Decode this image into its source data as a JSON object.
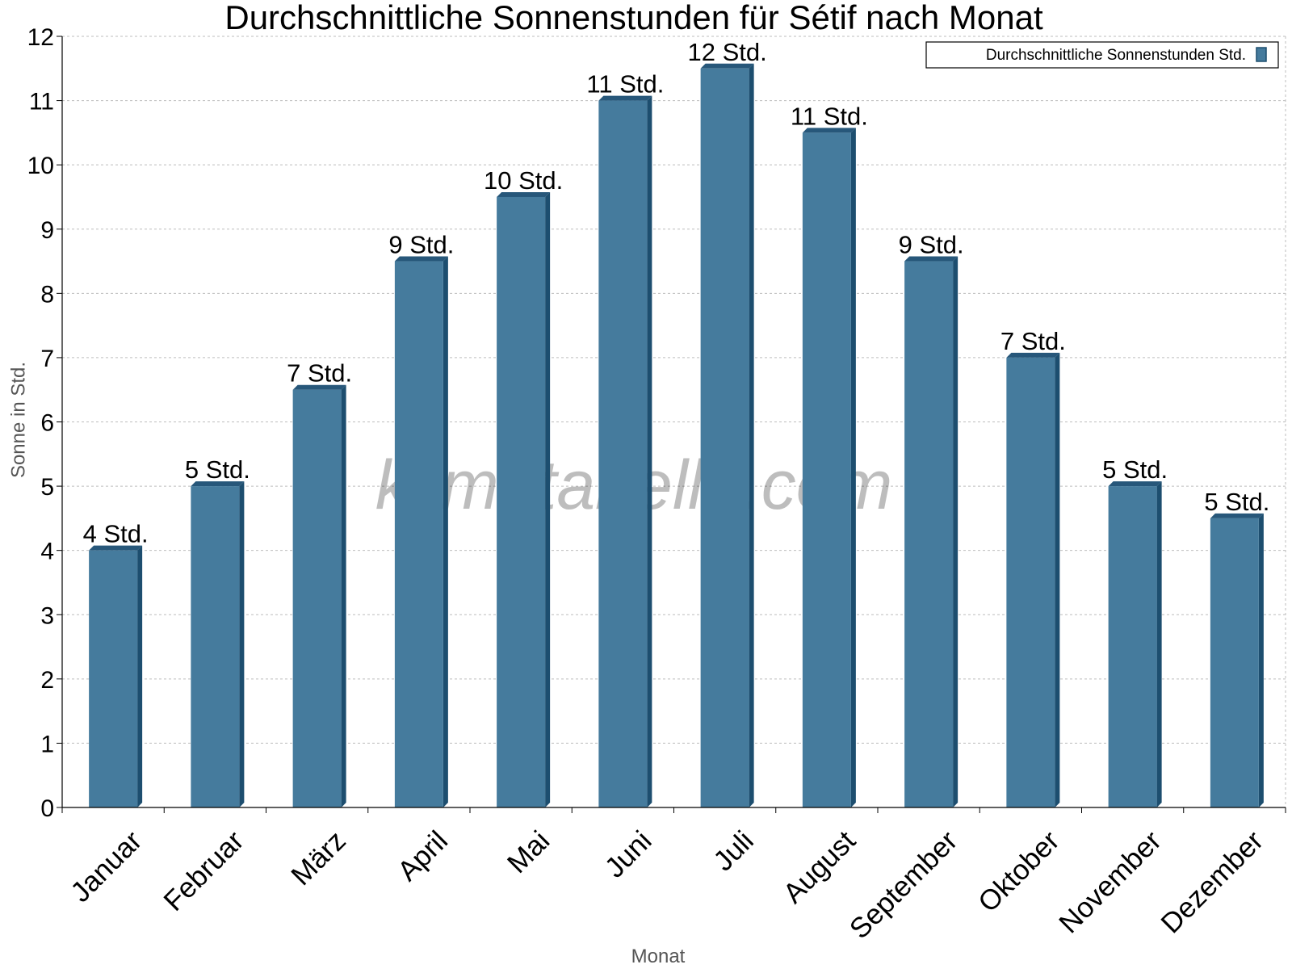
{
  "chart_data": {
    "type": "bar",
    "title": "Durchschnittliche Sonnenstunden für Sétif nach Monat",
    "xlabel": "Monat",
    "ylabel": "Sonne in Std.",
    "ylim": [
      0,
      12
    ],
    "yticks": [
      0,
      1,
      2,
      3,
      4,
      5,
      6,
      7,
      8,
      9,
      10,
      11,
      12
    ],
    "grid": true,
    "legend_position": "top-right",
    "categories": [
      "Januar",
      "Februar",
      "März",
      "April",
      "Mai",
      "Juni",
      "Juli",
      "August",
      "September",
      "Oktober",
      "November",
      "Dezember"
    ],
    "series": [
      {
        "name": "Durchschnittliche Sonnenstunden Std.",
        "values": [
          4,
          5,
          6.5,
          8.5,
          9.5,
          11,
          11.5,
          10.5,
          8.5,
          7,
          5,
          4.5
        ],
        "labels": [
          "4 Std.",
          "5 Std.",
          "7 Std.",
          "9 Std.",
          "10 Std.",
          "11 Std.",
          "12 Std.",
          "11 Std.",
          "9 Std.",
          "7 Std.",
          "5 Std.",
          "5 Std."
        ],
        "color": "#457b9d",
        "side_color": "#1d4e6f",
        "top_color": "#27577a"
      }
    ]
  },
  "watermark": "klimatabelle.com"
}
